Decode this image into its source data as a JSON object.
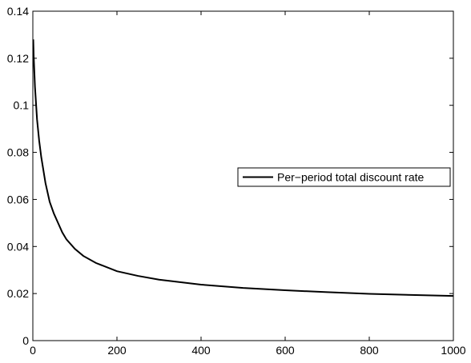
{
  "chart_data": {
    "type": "line",
    "title": "",
    "xlabel": "",
    "ylabel": "",
    "xlim": [
      0,
      1000
    ],
    "ylim": [
      0,
      0.14
    ],
    "xticks": [
      0,
      200,
      400,
      600,
      800,
      1000
    ],
    "yticks": [
      0,
      0.02,
      0.04,
      0.06,
      0.08,
      0.1,
      0.12,
      0.14
    ],
    "xtick_labels": [
      "0",
      "200",
      "400",
      "600",
      "800",
      "1000"
    ],
    "ytick_labels": [
      "0",
      "0.02",
      "0.04",
      "0.06",
      "0.08",
      "0.1",
      "0.12",
      "0.14"
    ],
    "grid": false,
    "legend": {
      "placement": "right",
      "entries": [
        "Per−period total discount rate"
      ]
    },
    "series": [
      {
        "name": "Per−period total discount rate",
        "color": "#000000",
        "x": [
          1,
          2,
          5,
          10,
          15,
          20,
          30,
          40,
          50,
          60,
          70,
          80,
          100,
          120,
          150,
          200,
          250,
          300,
          400,
          500,
          600,
          700,
          800,
          900,
          1000
        ],
        "y": [
          0.128,
          0.121,
          0.108,
          0.094,
          0.085,
          0.078,
          0.067,
          0.059,
          0.054,
          0.05,
          0.046,
          0.043,
          0.039,
          0.036,
          0.033,
          0.0295,
          0.0275,
          0.0259,
          0.0238,
          0.0224,
          0.0214,
          0.0206,
          0.0199,
          0.0194,
          0.019
        ]
      }
    ]
  }
}
